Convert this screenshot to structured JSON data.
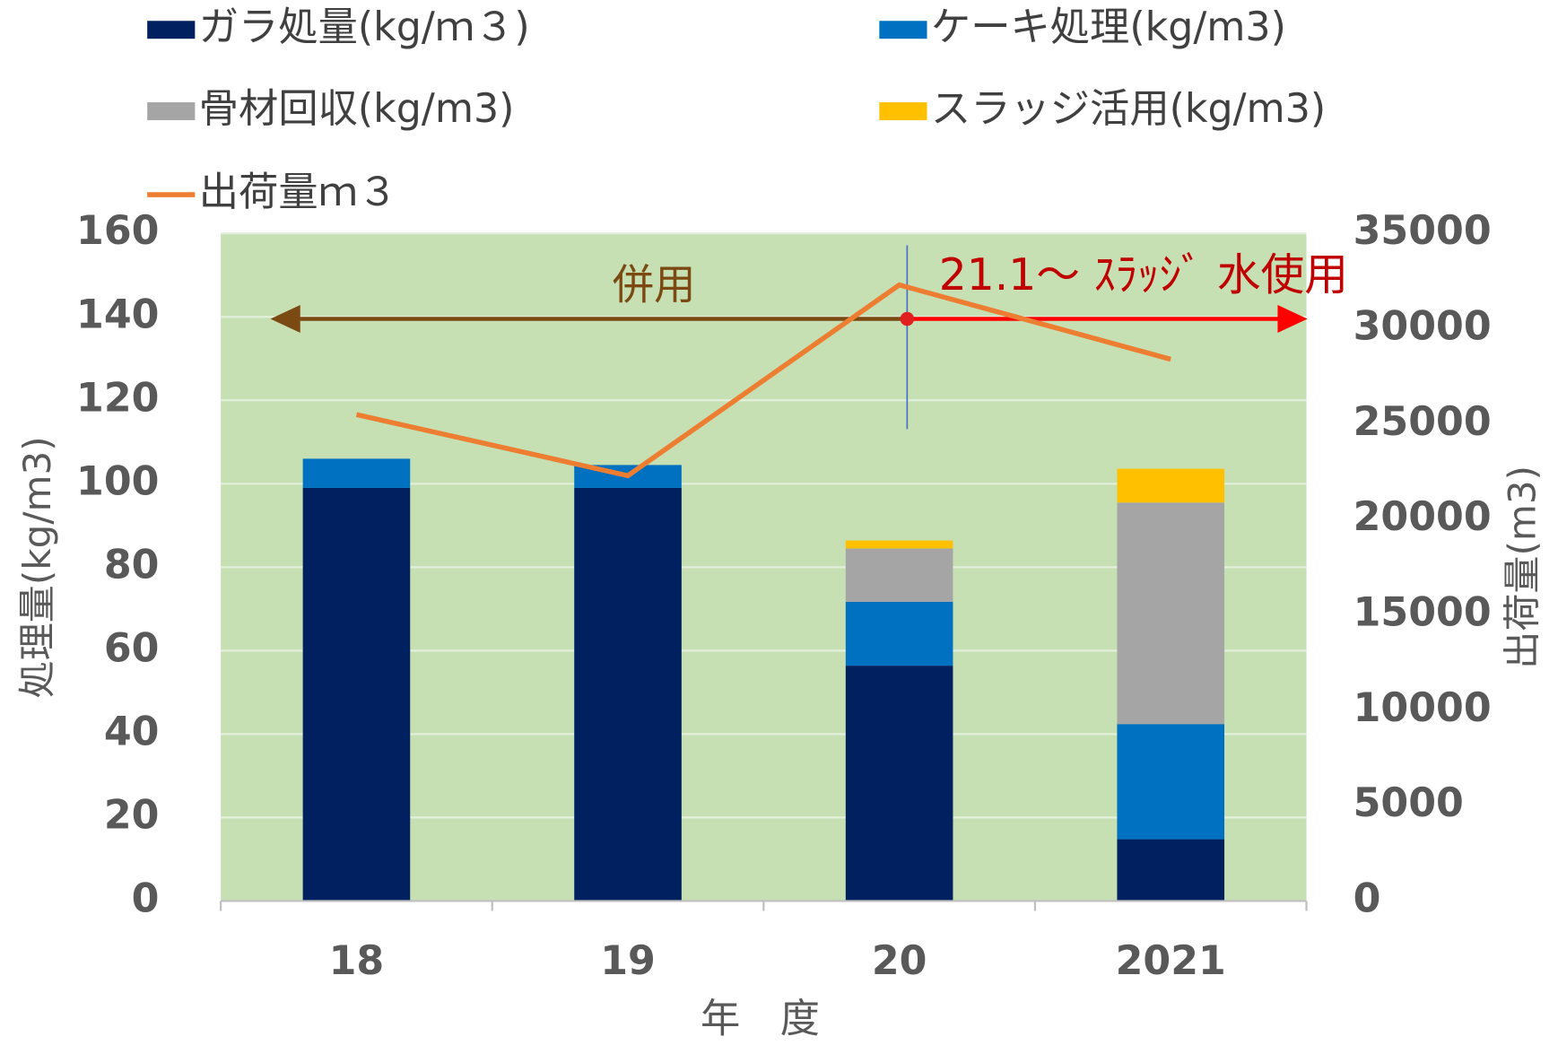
{
  "chart_data": {
    "type": "bar",
    "stacked": true,
    "categories": [
      "18",
      "19",
      "20",
      "2021"
    ],
    "x_label": "年　度",
    "y_label": "処理量(kg/m3)",
    "y2_label": "出荷量(m3)",
    "annotations": [
      "併用",
      "21.1～ ｽﾗｯｼﾞ 水使用"
    ],
    "ylim": [
      0,
      160
    ],
    "yticks": [
      0,
      20,
      40,
      60,
      80,
      100,
      120,
      140,
      160
    ],
    "y2lim": [
      0,
      35000
    ],
    "y2ticks": [
      0,
      5000,
      10000,
      15000,
      20000,
      25000,
      30000,
      35000
    ],
    "grid": true,
    "legend": "top",
    "plot_background": "#c6e0b4",
    "series": [
      {
        "name": "ガラ処量(kg/ｍ３)",
        "color": "#002060",
        "values": [
          99,
          99,
          56.4,
          14.8
        ]
      },
      {
        "name": "ケーキ処理(kg/m3)",
        "color": "#0070c0",
        "values": [
          7,
          5.5,
          15.3,
          27.6
        ]
      },
      {
        "name": "骨材回収(kg/m3)",
        "color": "#a5a5a5",
        "values": [
          null,
          null,
          12.8,
          53.1
        ]
      },
      {
        "name": "スラッジ活用(kg/m3)",
        "color": "#ffc000",
        "values": [
          null,
          null,
          1.9,
          8.1
        ]
      },
      {
        "name": "出荷量ｍ３",
        "color": "#ed7d31",
        "type": "line",
        "axis": "y2",
        "values": [
          25500,
          22300,
          32300,
          28400
        ]
      }
    ]
  }
}
